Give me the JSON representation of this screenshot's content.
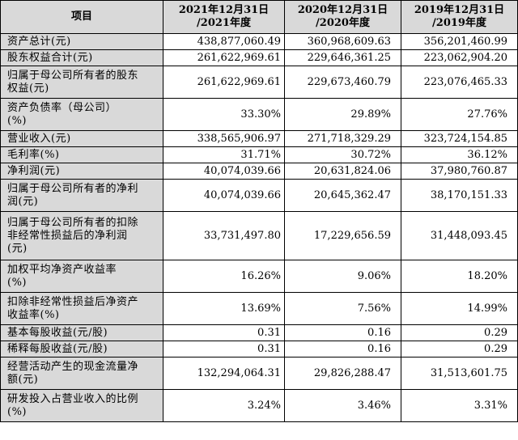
{
  "table": {
    "headers": [
      "项目",
      "2021年12月31日\n/2021年度",
      "2020年12月31日\n/2020年度",
      "2019年12月31日\n/2019年度"
    ],
    "rows": [
      {
        "label": "资产总计(元)",
        "values": [
          "438,877,060.49",
          "360,968,609.63",
          "356,201,460.99"
        ]
      },
      {
        "label": "股东权益合计(元)",
        "values": [
          "261,622,969.61",
          "229,646,361.25",
          "223,062,904.20"
        ]
      },
      {
        "label": "归属于母公司所有者的股东\n权益(元)",
        "values": [
          "261,622,969.61",
          "229,673,460.79",
          "223,076,465.33"
        ]
      },
      {
        "label": "资产负债率（母公司）\n(%)",
        "values": [
          "33.30%",
          "29.89%",
          "27.76%"
        ]
      },
      {
        "label": "营业收入(元)",
        "values": [
          "338,565,906.97",
          "271,718,329.29",
          "323,724,154.85"
        ]
      },
      {
        "label": "毛利率(%)",
        "values": [
          "31.71%",
          "30.72%",
          "36.12%"
        ]
      },
      {
        "label": "净利润(元)",
        "values": [
          "40,074,039.66",
          "20,631,824.06",
          "37,980,760.87"
        ]
      },
      {
        "label": "归属于母公司所有者的净利\n润(元)",
        "values": [
          "40,074,039.66",
          "20,645,362.47",
          "38,170,151.33"
        ]
      },
      {
        "label": "归属于母公司所有者的扣除\n非经常性损益后的净利润\n(元)",
        "values": [
          "33,731,497.80",
          "17,229,656.59",
          "31,448,093.45"
        ]
      },
      {
        "label": "加权平均净资产收益率\n(%)",
        "values": [
          "16.26%",
          "9.06%",
          "18.20%"
        ]
      },
      {
        "label": "扣除非经常性损益后净资产\n收益率(%)",
        "values": [
          "13.69%",
          "7.56%",
          "14.99%"
        ]
      },
      {
        "label": "基本每股收益(元/股)",
        "values": [
          "0.31",
          "0.16",
          "0.29"
        ]
      },
      {
        "label": "稀释每股收益(元/股)",
        "values": [
          "0.31",
          "0.16",
          "0.29"
        ]
      },
      {
        "label": "经营活动产生的现金流量净\n额(元)",
        "values": [
          "132,294,064.31",
          "29,826,288.47",
          "31,513,601.75"
        ]
      },
      {
        "label": "研发投入占营业收入的比例\n(%)",
        "values": [
          "3.24%",
          "3.46%",
          "3.31%"
        ]
      }
    ]
  }
}
